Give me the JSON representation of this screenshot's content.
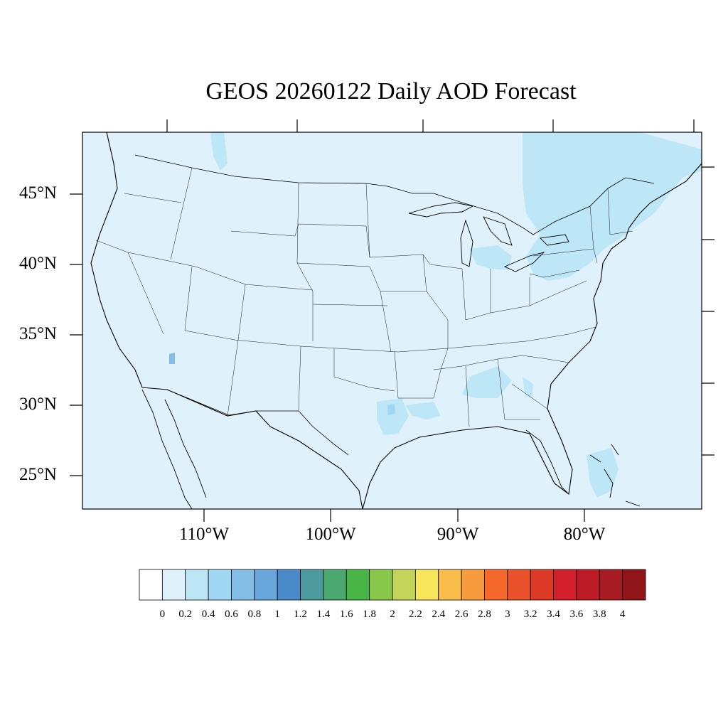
{
  "title": "GEOS 20260122 Daily AOD Forecast",
  "latitude_labels": [
    "45°N",
    "40°N",
    "35°N",
    "30°N",
    "25°N"
  ],
  "longitude_labels": [
    "110°W",
    "100°W",
    "90°W",
    "80°W"
  ],
  "colorbar": {
    "labels": [
      "0",
      "0.2",
      "0.4",
      "0.6",
      "0.8",
      "1",
      "1.2",
      "1.4",
      "1.6",
      "1.8",
      "2",
      "2.2",
      "2.4",
      "2.6",
      "2.8",
      "3",
      "3.2",
      "3.4",
      "3.6",
      "3.8",
      "4"
    ],
    "colors": [
      "#ffffff",
      "#dff2fb",
      "#bde6f7",
      "#a0d7f2",
      "#84bde6",
      "#69a6dc",
      "#4a8ac9",
      "#4a9a9e",
      "#4aa86f",
      "#4ab547",
      "#88c74a",
      "#c3d45a",
      "#f7e659",
      "#f8bd4a",
      "#f79b3c",
      "#f5692d",
      "#e9522a",
      "#dc3a26",
      "#d21f2b",
      "#bd1b26",
      "#a71b23",
      "#8f1519"
    ]
  },
  "colors": {
    "background_low_aod": "#dff2fb",
    "elevated_aod": "#bde6f7",
    "high_spot": "#84bde6"
  }
}
